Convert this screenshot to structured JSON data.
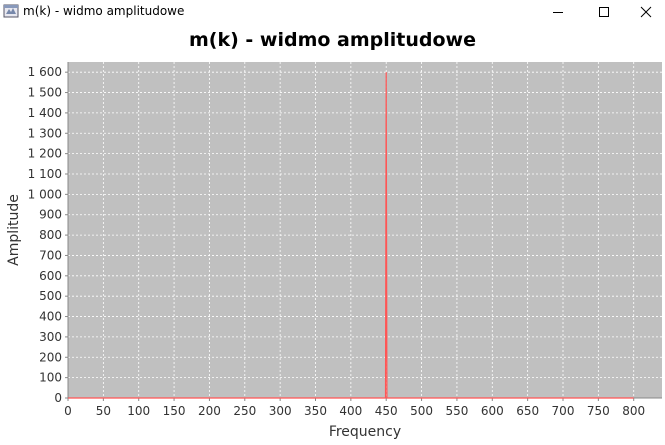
{
  "window": {
    "title": "m(k) - widmo amplitudowe",
    "app_icon": "java-app-icon",
    "controls": [
      "minimize-icon",
      "maximize-icon",
      "close-icon"
    ]
  },
  "colors": {
    "plot_background": "#c0c0c0",
    "grid": "#ffffff",
    "series": "#ff5555"
  },
  "chart_data": {
    "type": "line",
    "title": "m(k) - widmo amplitudowe",
    "xlabel": "Frequency",
    "ylabel": "Amplitude",
    "xlim": [
      0,
      840
    ],
    "ylim": [
      0,
      1650
    ],
    "xticks": [
      0,
      50,
      100,
      150,
      200,
      250,
      300,
      350,
      400,
      450,
      500,
      550,
      600,
      650,
      700,
      750,
      800
    ],
    "xtick_labels": [
      "0",
      "50",
      "100",
      "150",
      "200",
      "250",
      "300",
      "350",
      "400",
      "450",
      "500",
      "550",
      "600",
      "650",
      "700",
      "750",
      "800"
    ],
    "yticks": [
      0,
      100,
      200,
      300,
      400,
      500,
      600,
      700,
      800,
      900,
      1000,
      1100,
      1200,
      1300,
      1400,
      1500,
      1600
    ],
    "ytick_labels": [
      "0",
      "100",
      "200",
      "300",
      "400",
      "500",
      "600",
      "700",
      "800",
      "900",
      "1 000",
      "1 100",
      "1 200",
      "1 300",
      "1 400",
      "1 500",
      "1 600"
    ],
    "grid": true,
    "legend": "none",
    "series": [
      {
        "x": [
          0,
          449,
          450,
          451,
          800
        ],
        "values": [
          0,
          0,
          1600,
          0,
          0
        ]
      }
    ]
  }
}
